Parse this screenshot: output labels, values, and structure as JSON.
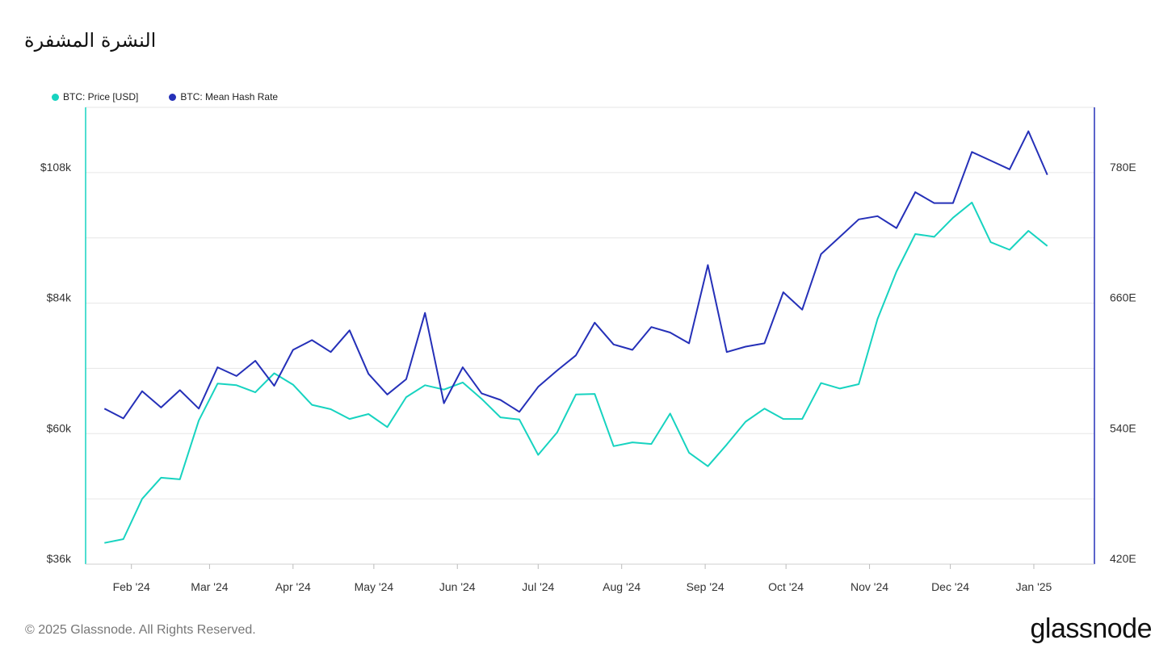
{
  "header": {
    "title": "النشرة المشفرة"
  },
  "footer": {
    "copyright": "© 2025 Glassnode. All Rights Reserved.",
    "brand": "glassnode"
  },
  "colors": {
    "price": "#17d3c0",
    "hash": "#2530b8",
    "grid": "#e6e6e6"
  },
  "chart_data": {
    "type": "line",
    "x_tick_labels": [
      "Feb '24",
      "Mar '24",
      "Apr '24",
      "May '24",
      "Jun '24",
      "Jul '24",
      "Aug '24",
      "Sep '24",
      "Oct '24",
      "Nov '24",
      "Dec '24",
      "Jan '25"
    ],
    "x": [
      "2024-01-22",
      "2024-01-29",
      "2024-02-05",
      "2024-02-12",
      "2024-02-19",
      "2024-02-26",
      "2024-03-04",
      "2024-03-11",
      "2024-03-18",
      "2024-03-25",
      "2024-04-01",
      "2024-04-08",
      "2024-04-15",
      "2024-04-22",
      "2024-04-29",
      "2024-05-06",
      "2024-05-13",
      "2024-05-20",
      "2024-05-27",
      "2024-06-03",
      "2024-06-10",
      "2024-06-17",
      "2024-06-24",
      "2024-07-01",
      "2024-07-08",
      "2024-07-15",
      "2024-07-22",
      "2024-07-29",
      "2024-08-05",
      "2024-08-12",
      "2024-08-19",
      "2024-08-26",
      "2024-09-02",
      "2024-09-09",
      "2024-09-16",
      "2024-09-23",
      "2024-09-30",
      "2024-10-07",
      "2024-10-14",
      "2024-10-21",
      "2024-10-28",
      "2024-11-04",
      "2024-11-11",
      "2024-11-18",
      "2024-11-25",
      "2024-12-02",
      "2024-12-09",
      "2024-12-16",
      "2024-12-23",
      "2024-12-30",
      "2025-01-06"
    ],
    "series": [
      {
        "name": "BTC: Price [USD]",
        "axis": "left",
        "values": [
          39900,
          40600,
          48000,
          51900,
          51600,
          62400,
          69200,
          68900,
          67600,
          71100,
          69000,
          65300,
          64500,
          62700,
          63600,
          61200,
          66700,
          68900,
          68100,
          69400,
          66400,
          63000,
          62600,
          56100,
          60200,
          67200,
          67300,
          57700,
          58400,
          58100,
          63700,
          56500,
          54000,
          58000,
          62200,
          64600,
          62700,
          62700,
          69300,
          68300,
          69100,
          81100,
          89800,
          96700,
          96200,
          99700,
          102500,
          95200,
          93800,
          97300,
          94500
        ],
        "ylim": [
          36000,
          120000
        ],
        "yticks": [
          "$36k",
          "$60k",
          "$84k",
          "$108k"
        ]
      },
      {
        "name": "BTC: Mean Hash Rate",
        "axis": "right",
        "values": [
          563,
          554,
          579,
          564,
          580,
          563,
          601,
          593,
          607,
          584,
          617,
          626,
          615,
          635,
          595,
          576,
          590,
          651,
          568,
          601,
          577,
          571,
          560,
          583,
          598,
          612,
          642,
          622,
          617,
          638,
          633,
          623,
          695,
          615,
          620,
          623,
          670,
          654,
          705,
          721,
          737,
          740,
          729,
          762,
          752,
          752,
          799,
          791,
          783,
          818,
          778
        ],
        "ylim": [
          420,
          840
        ],
        "yticks": [
          "420E",
          "540E",
          "660E",
          "780E"
        ]
      }
    ],
    "grid": true,
    "legend": "top-left"
  }
}
